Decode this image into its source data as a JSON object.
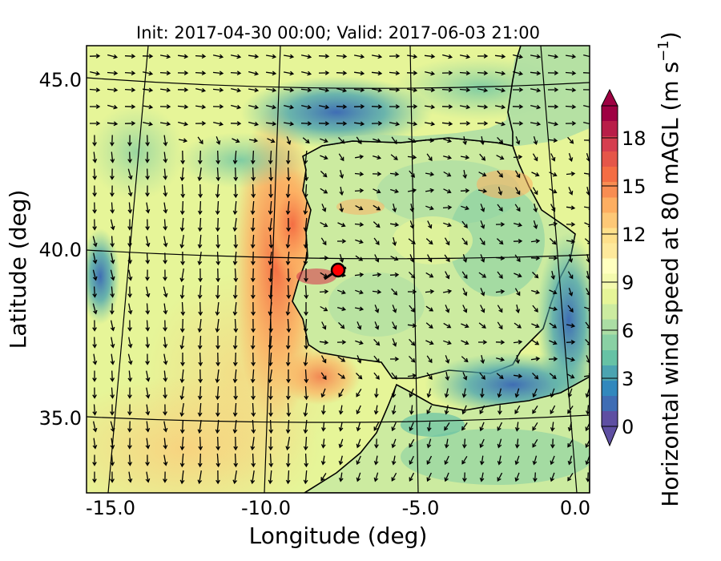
{
  "title": "Init: 2017-04-30 00:00; Valid: 2017-06-03 21:00",
  "xlabel": "Longitude (deg)",
  "ylabel": "Latitude (deg)",
  "colorbar": {
    "label_main": "Horizontal wind speed at 80 mAGL (m s",
    "label_exp": "−1",
    "label_close": ")",
    "range": [
      0,
      20
    ],
    "ticks": [
      "0",
      "3",
      "6",
      "9",
      "12",
      "15",
      "18"
    ],
    "extend": "both"
  },
  "map": {
    "lon_range": [
      -16,
      0.2
    ],
    "lat_range": [
      32.8,
      46.1
    ],
    "lon_ticks": [
      "-15.0",
      "-10.0",
      "-5.0",
      "0.0"
    ],
    "lat_ticks": [
      "45.0",
      "40.0",
      "35.0"
    ],
    "gridlines": true,
    "vector_field": "wind arrows",
    "marker": {
      "lon": -7.6,
      "lat": 39.3,
      "color": "#ff0000"
    }
  },
  "colors": {
    "colormap": [
      "#5e4fa2",
      "#3f6db4",
      "#3288bd",
      "#4ba4b1",
      "#66c2a5",
      "#89d0a4",
      "#abdda4",
      "#cceba0",
      "#e6f598",
      "#f4faae",
      "#ffffbf",
      "#fee99b",
      "#fee08b",
      "#fdc877",
      "#fdae61",
      "#f88d52",
      "#f46d43",
      "#e55649",
      "#d53e4f",
      "#b81e48",
      "#9e0142"
    ]
  }
}
